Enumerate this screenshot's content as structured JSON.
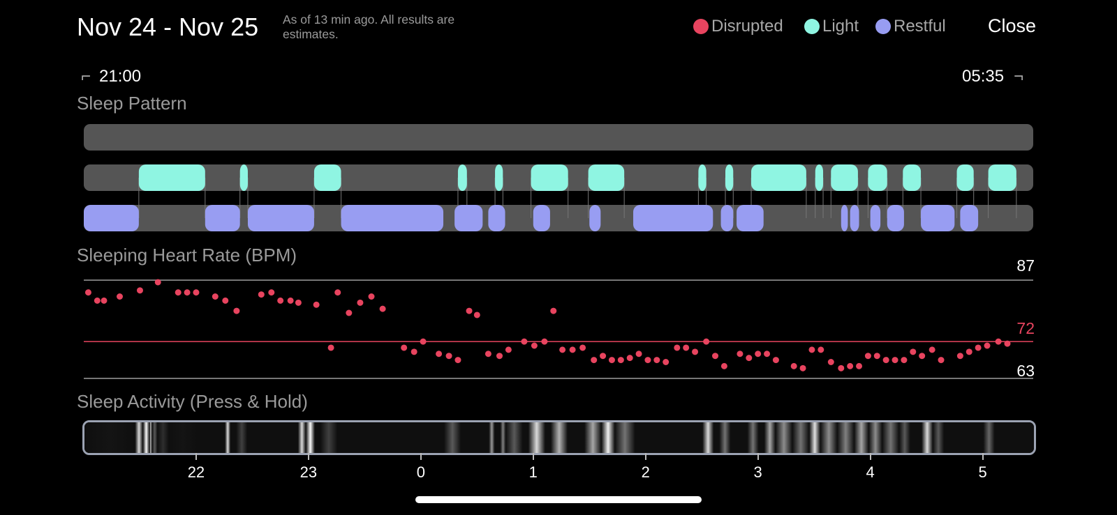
{
  "header": {
    "date_range": "Nov 24 - Nov 25",
    "as_of": "As of 13 min ago. All results are estimates.",
    "close_label": "Close"
  },
  "legend": [
    {
      "label": "Disrupted",
      "color": "#e8445f"
    },
    {
      "label": "Light",
      "color": "#8ff5e2"
    },
    {
      "label": "Restful",
      "color": "#989df2"
    }
  ],
  "time_range": {
    "start": "21:00",
    "end": "05:35"
  },
  "sections": {
    "sleep_pattern": "Sleep Pattern",
    "heart_rate": "Sleeping Heart Rate (BPM)",
    "activity": "Sleep Activity (Press & Hold)"
  },
  "sleep_pattern": {
    "colors": {
      "track": "#555555",
      "light": "#8ff5e2",
      "restful": "#989df2",
      "connector": "#777777"
    },
    "light": [
      [
        0.49,
        1.08
      ],
      [
        1.39,
        1.46
      ],
      [
        2.05,
        2.29
      ],
      [
        3.33,
        3.41
      ],
      [
        3.66,
        3.73
      ],
      [
        3.98,
        4.31
      ],
      [
        4.49,
        4.81
      ],
      [
        5.47,
        5.54
      ],
      [
        5.71,
        5.78
      ],
      [
        5.94,
        6.43
      ],
      [
        6.51,
        6.58
      ],
      [
        6.65,
        6.89
      ],
      [
        6.98,
        7.15
      ],
      [
        7.29,
        7.45
      ],
      [
        7.77,
        7.92
      ],
      [
        8.05,
        8.3
      ]
    ],
    "restful": [
      [
        0,
        0.49
      ],
      [
        1.08,
        1.39
      ],
      [
        1.46,
        2.05
      ],
      [
        2.29,
        3.2
      ],
      [
        3.3,
        3.55
      ],
      [
        3.6,
        3.75
      ],
      [
        4.0,
        4.15
      ],
      [
        4.5,
        4.6
      ],
      [
        4.89,
        5.6
      ],
      [
        5.67,
        5.78
      ],
      [
        5.81,
        6.05
      ],
      [
        6.74,
        6.8
      ],
      [
        6.82,
        6.9
      ],
      [
        7.0,
        7.09
      ],
      [
        7.15,
        7.3
      ],
      [
        7.45,
        7.75
      ],
      [
        7.8,
        7.96
      ]
    ]
  },
  "heart_rate": {
    "max_label": "87",
    "avg_label": "72",
    "min_label": "63",
    "max": 87,
    "avg": 72,
    "min": 63,
    "points": [
      [
        0.04,
        84.0
      ],
      [
        0.12,
        82.0
      ],
      [
        0.18,
        82.0
      ],
      [
        0.32,
        83.0
      ],
      [
        0.5,
        84.5
      ],
      [
        0.66,
        86.5
      ],
      [
        0.84,
        84.0
      ],
      [
        0.92,
        84.0
      ],
      [
        1.0,
        84.0
      ],
      [
        1.17,
        83.0
      ],
      [
        1.26,
        82.0
      ],
      [
        1.36,
        79.5
      ],
      [
        1.58,
        83.5
      ],
      [
        1.67,
        84.0
      ],
      [
        1.75,
        82.0
      ],
      [
        1.84,
        82.0
      ],
      [
        1.91,
        81.5
      ],
      [
        2.07,
        81.0
      ],
      [
        2.2,
        70.5
      ],
      [
        2.26,
        84.0
      ],
      [
        2.36,
        79.0
      ],
      [
        2.46,
        81.5
      ],
      [
        2.56,
        83.0
      ],
      [
        2.66,
        80.0
      ],
      [
        2.85,
        70.5
      ],
      [
        2.94,
        69.5
      ],
      [
        3.02,
        72.0
      ],
      [
        3.16,
        69.0
      ],
      [
        3.25,
        68.5
      ],
      [
        3.33,
        67.5
      ],
      [
        3.43,
        79.5
      ],
      [
        3.5,
        78.5
      ],
      [
        3.6,
        69.0
      ],
      [
        3.7,
        68.5
      ],
      [
        3.78,
        70.0
      ],
      [
        3.92,
        72.0
      ],
      [
        4.01,
        71.0
      ],
      [
        4.1,
        72.0
      ],
      [
        4.18,
        79.5
      ],
      [
        4.26,
        70.0
      ],
      [
        4.35,
        70.0
      ],
      [
        4.44,
        70.5
      ],
      [
        4.54,
        67.5
      ],
      [
        4.62,
        68.5
      ],
      [
        4.7,
        67.5
      ],
      [
        4.78,
        67.5
      ],
      [
        4.86,
        68.0
      ],
      [
        4.94,
        69.0
      ],
      [
        5.02,
        67.5
      ],
      [
        5.1,
        67.5
      ],
      [
        5.18,
        67.0
      ],
      [
        5.28,
        70.5
      ],
      [
        5.36,
        70.5
      ],
      [
        5.44,
        69.5
      ],
      [
        5.54,
        72.0
      ],
      [
        5.62,
        68.5
      ],
      [
        5.7,
        66.0
      ],
      [
        5.84,
        69.0
      ],
      [
        5.92,
        68.0
      ],
      [
        6.0,
        69.0
      ],
      [
        6.08,
        69.0
      ],
      [
        6.16,
        67.5
      ],
      [
        6.32,
        66.0
      ],
      [
        6.4,
        65.5
      ],
      [
        6.48,
        70.0
      ],
      [
        6.56,
        70.0
      ],
      [
        6.65,
        67.0
      ],
      [
        6.74,
        65.5
      ],
      [
        6.82,
        66.0
      ],
      [
        6.9,
        66.0
      ],
      [
        6.98,
        68.5
      ],
      [
        7.06,
        68.5
      ],
      [
        7.14,
        67.5
      ],
      [
        7.22,
        67.5
      ],
      [
        7.3,
        67.5
      ],
      [
        7.38,
        69.5
      ],
      [
        7.46,
        68.5
      ],
      [
        7.55,
        70.0
      ],
      [
        7.63,
        67.5
      ],
      [
        7.8,
        68.5
      ],
      [
        7.88,
        69.5
      ],
      [
        7.96,
        70.5
      ],
      [
        8.04,
        71.0
      ],
      [
        8.14,
        72.0
      ],
      [
        8.22,
        71.5
      ]
    ],
    "colors": {
      "point": "#e8445f",
      "avg_line": "#e8445f",
      "ref_line": "#777777",
      "avg_label": "#e8445f"
    }
  },
  "activity": {
    "segments": [
      [
        0.0,
        0.45,
        0.08
      ],
      [
        0.45,
        0.52,
        0.85
      ],
      [
        0.52,
        0.58,
        0.98
      ],
      [
        0.58,
        0.6,
        0.8
      ],
      [
        0.6,
        0.65,
        0.35
      ],
      [
        0.65,
        0.75,
        0.18
      ],
      [
        0.75,
        1.0,
        0.08
      ],
      [
        1.25,
        1.3,
        0.85
      ],
      [
        1.35,
        1.45,
        0.25
      ],
      [
        1.9,
        1.97,
        0.85
      ],
      [
        1.97,
        2.05,
        0.98
      ],
      [
        2.1,
        2.25,
        0.25
      ],
      [
        3.2,
        3.35,
        0.35
      ],
      [
        3.6,
        3.65,
        0.6
      ],
      [
        3.7,
        3.75,
        0.5
      ],
      [
        3.75,
        3.9,
        0.35
      ],
      [
        3.95,
        4.1,
        0.85
      ],
      [
        4.15,
        4.3,
        0.7
      ],
      [
        4.45,
        4.6,
        0.65
      ],
      [
        4.6,
        4.72,
        0.95
      ],
      [
        4.72,
        4.9,
        0.45
      ],
      [
        5.5,
        5.6,
        0.85
      ],
      [
        5.65,
        5.75,
        0.45
      ],
      [
        5.9,
        6.0,
        0.45
      ],
      [
        6.05,
        6.15,
        0.65
      ],
      [
        6.15,
        6.3,
        0.55
      ],
      [
        6.3,
        6.45,
        0.45
      ],
      [
        6.45,
        6.55,
        0.88
      ],
      [
        6.55,
        6.7,
        0.55
      ],
      [
        6.7,
        6.85,
        0.5
      ],
      [
        6.85,
        6.98,
        0.65
      ],
      [
        6.98,
        7.1,
        0.55
      ],
      [
        7.1,
        7.25,
        0.45
      ],
      [
        7.25,
        7.35,
        0.35
      ],
      [
        7.45,
        7.55,
        0.85
      ],
      [
        7.55,
        7.65,
        0.35
      ],
      [
        8.0,
        8.1,
        0.4
      ]
    ]
  },
  "x_axis": {
    "ticks": [
      {
        "label": "22",
        "value": 1.0
      },
      {
        "label": "23",
        "value": 2.0
      },
      {
        "label": "0",
        "value": 3.0
      },
      {
        "label": "1",
        "value": 4.0
      },
      {
        "label": "2",
        "value": 5.0
      },
      {
        "label": "3",
        "value": 6.0
      },
      {
        "label": "4",
        "value": 7.0
      },
      {
        "label": "5",
        "value": 8.0
      }
    ],
    "domain": [
      0,
      8.45
    ]
  }
}
